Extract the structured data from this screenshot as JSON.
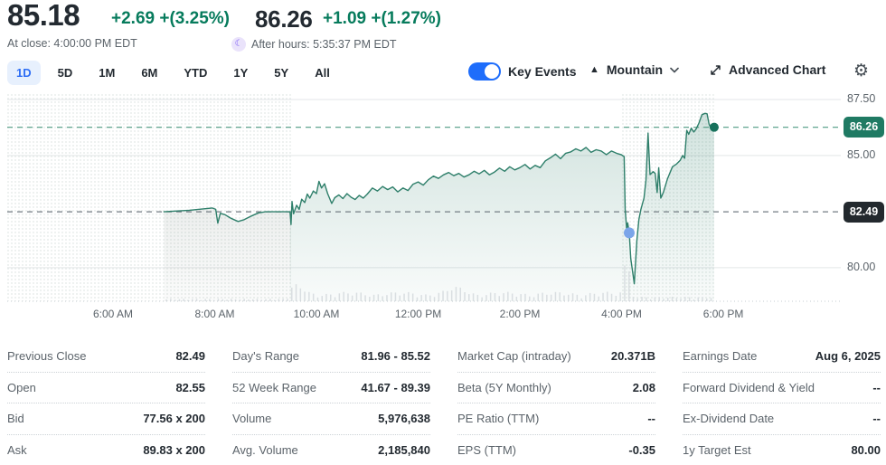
{
  "colors": {
    "positive_green": "#067b5c",
    "chart_line": "#2e7f6a",
    "current_badge": "#1f7a63",
    "prev_close_badge": "#23292e",
    "accent_blue": "#1e6dfb",
    "key_event_dot": "#7ba5e9"
  },
  "header": {
    "price": "85.18",
    "change": "+2.69 +(3.25%)",
    "at_close": "At close: 4:00:00 PM EDT",
    "post_price": "86.26",
    "post_change": "+1.09 +(1.27%)",
    "after_hours_label": "After hours: 5:35:37 PM EDT",
    "moon_icon": "☾"
  },
  "toolbar": {
    "ranges": [
      {
        "label": "1D",
        "active": true
      },
      {
        "label": "5D",
        "active": false
      },
      {
        "label": "1M",
        "active": false
      },
      {
        "label": "6M",
        "active": false
      },
      {
        "label": "YTD",
        "active": false
      },
      {
        "label": "1Y",
        "active": false
      },
      {
        "label": "5Y",
        "active": false
      },
      {
        "label": "All",
        "active": false
      }
    ],
    "key_events_label": "Key Events",
    "key_events_on": true,
    "chart_type_label": "Mountain",
    "mountain_icon": "▲",
    "advanced_chart_label": "Advanced Chart",
    "gear_icon": "⚙"
  },
  "chart_data": {
    "type": "area",
    "title": "1-day intraday price chart",
    "x_axis": {
      "range_hours": [
        3.92,
        20.31
      ],
      "ticks": [
        {
          "label": "6:00 AM",
          "t": 6
        },
        {
          "label": "8:00 AM",
          "t": 8
        },
        {
          "label": "10:00 AM",
          "t": 10
        },
        {
          "label": "12:00 PM",
          "t": 12
        },
        {
          "label": "2:00 PM",
          "t": 14
        },
        {
          "label": "4:00 PM",
          "t": 16
        },
        {
          "label": "6:00 PM",
          "t": 18
        }
      ]
    },
    "y_axis": {
      "range": [
        78.5,
        87.78
      ],
      "ticks": [
        {
          "label": "87.50",
          "v": 87.5
        },
        {
          "label": "85.00",
          "v": 85.0
        },
        {
          "label": "80.00",
          "v": 80.0
        }
      ],
      "current_marker": {
        "label": "86.26",
        "v": 86.26
      },
      "prev_close_marker": {
        "label": "82.49",
        "v": 82.49
      }
    },
    "sessions": {
      "premarket": [
        3.92,
        9.5
      ],
      "market": [
        9.5,
        16.0
      ],
      "after_hours": [
        16.0,
        17.82
      ]
    },
    "markers": {
      "key_event": {
        "t": 16.15,
        "v": 81.55
      },
      "last_trade": {
        "t": 17.82,
        "v": 86.26
      }
    },
    "series": [
      {
        "name": "price",
        "unit": "USD",
        "points": [
          [
            7.0,
            82.49
          ],
          [
            7.5,
            82.56
          ],
          [
            7.95,
            82.66
          ],
          [
            8.02,
            82.6
          ],
          [
            8.06,
            81.98
          ],
          [
            8.11,
            82.42
          ],
          [
            8.2,
            82.36
          ],
          [
            8.32,
            82.2
          ],
          [
            8.46,
            82.06
          ],
          [
            8.58,
            82.14
          ],
          [
            8.72,
            82.3
          ],
          [
            8.86,
            82.44
          ],
          [
            9.0,
            82.49
          ],
          [
            9.48,
            82.49
          ],
          [
            9.5,
            81.92
          ],
          [
            9.52,
            82.95
          ],
          [
            9.55,
            82.4
          ],
          [
            9.61,
            82.78
          ],
          [
            9.66,
            82.6
          ],
          [
            9.71,
            83.05
          ],
          [
            9.77,
            82.9
          ],
          [
            9.82,
            83.28
          ],
          [
            9.87,
            83.1
          ],
          [
            9.94,
            83.42
          ],
          [
            10.0,
            83.3
          ],
          [
            10.05,
            83.85
          ],
          [
            10.1,
            83.55
          ],
          [
            10.16,
            83.74
          ],
          [
            10.22,
            83.3
          ],
          [
            10.3,
            82.86
          ],
          [
            10.36,
            83.12
          ],
          [
            10.44,
            83.24
          ],
          [
            10.52,
            83.08
          ],
          [
            10.6,
            83.3
          ],
          [
            10.68,
            83.14
          ],
          [
            10.76,
            83.04
          ],
          [
            10.84,
            83.22
          ],
          [
            10.92,
            83.1
          ],
          [
            11.0,
            83.28
          ],
          [
            11.1,
            83.55
          ],
          [
            11.2,
            83.42
          ],
          [
            11.3,
            83.62
          ],
          [
            11.4,
            83.48
          ],
          [
            11.5,
            83.6
          ],
          [
            11.6,
            83.38
          ],
          [
            11.7,
            83.55
          ],
          [
            11.8,
            83.44
          ],
          [
            11.9,
            83.72
          ],
          [
            12.0,
            83.82
          ],
          [
            12.1,
            83.68
          ],
          [
            12.2,
            83.92
          ],
          [
            12.3,
            84.08
          ],
          [
            12.4,
            83.98
          ],
          [
            12.5,
            84.14
          ],
          [
            12.6,
            84.24
          ],
          [
            12.7,
            84.1
          ],
          [
            12.8,
            84.2
          ],
          [
            12.9,
            84.04
          ],
          [
            13.0,
            84.14
          ],
          [
            13.1,
            84.3
          ],
          [
            13.2,
            84.18
          ],
          [
            13.3,
            84.34
          ],
          [
            13.4,
            84.14
          ],
          [
            13.5,
            84.26
          ],
          [
            13.6,
            84.44
          ],
          [
            13.7,
            84.3
          ],
          [
            13.8,
            84.5
          ],
          [
            13.9,
            84.36
          ],
          [
            14.0,
            84.46
          ],
          [
            14.1,
            84.6
          ],
          [
            14.2,
            84.4
          ],
          [
            14.3,
            84.56
          ],
          [
            14.4,
            84.46
          ],
          [
            14.5,
            84.76
          ],
          [
            14.6,
            84.9
          ],
          [
            14.7,
            85.06
          ],
          [
            14.8,
            84.86
          ],
          [
            14.9,
            85.1
          ],
          [
            15.0,
            85.16
          ],
          [
            15.1,
            85.3
          ],
          [
            15.2,
            85.2
          ],
          [
            15.3,
            85.36
          ],
          [
            15.4,
            85.14
          ],
          [
            15.5,
            85.26
          ],
          [
            15.6,
            85.2
          ],
          [
            15.7,
            85.04
          ],
          [
            15.8,
            85.2
          ],
          [
            15.9,
            85.1
          ],
          [
            15.99,
            85.04
          ],
          [
            16.05,
            84.95
          ],
          [
            16.07,
            82.6
          ],
          [
            16.1,
            81.7
          ],
          [
            16.12,
            82.0
          ],
          [
            16.15,
            81.55
          ],
          [
            16.18,
            80.4
          ],
          [
            16.25,
            79.28
          ],
          [
            16.3,
            81.2
          ],
          [
            16.34,
            82.15
          ],
          [
            16.38,
            82.6
          ],
          [
            16.44,
            83.1
          ],
          [
            16.48,
            83.9
          ],
          [
            16.52,
            86.0
          ],
          [
            16.56,
            84.15
          ],
          [
            16.62,
            84.28
          ],
          [
            16.66,
            84.2
          ],
          [
            16.7,
            83.35
          ],
          [
            16.73,
            84.45
          ],
          [
            16.77,
            83.1
          ],
          [
            16.82,
            83.35
          ],
          [
            16.9,
            83.95
          ],
          [
            17.0,
            84.5
          ],
          [
            17.08,
            84.62
          ],
          [
            17.15,
            84.78
          ],
          [
            17.2,
            85.0
          ],
          [
            17.24,
            84.88
          ],
          [
            17.28,
            86.12
          ],
          [
            17.32,
            85.95
          ],
          [
            17.37,
            86.22
          ],
          [
            17.42,
            86.05
          ],
          [
            17.47,
            86.2
          ],
          [
            17.52,
            86.45
          ],
          [
            17.58,
            86.82
          ],
          [
            17.64,
            86.88
          ],
          [
            17.68,
            86.86
          ],
          [
            17.72,
            86.4
          ],
          [
            17.75,
            86.26
          ],
          [
            17.82,
            86.26
          ]
        ]
      }
    ]
  },
  "quote_table": {
    "columns": [
      [
        {
          "label": "Previous Close",
          "value": "82.49"
        },
        {
          "label": "Open",
          "value": "82.55"
        },
        {
          "label": "Bid",
          "value": "77.56 x 200"
        },
        {
          "label": "Ask",
          "value": "89.83 x 200"
        }
      ],
      [
        {
          "label": "Day's Range",
          "value": "81.96 - 85.52"
        },
        {
          "label": "52 Week Range",
          "value": "41.67 - 89.39"
        },
        {
          "label": "Volume",
          "value": "5,976,638"
        },
        {
          "label": "Avg. Volume",
          "value": "2,185,840"
        }
      ],
      [
        {
          "label": "Market Cap (intraday)",
          "value": "20.371B"
        },
        {
          "label": "Beta (5Y Monthly)",
          "value": "2.08"
        },
        {
          "label": "PE Ratio (TTM)",
          "value": "--"
        },
        {
          "label": "EPS (TTM)",
          "value": "-0.35"
        }
      ],
      [
        {
          "label": "Earnings Date",
          "value": "Aug 6, 2025"
        },
        {
          "label": "Forward Dividend & Yield",
          "value": "--"
        },
        {
          "label": "Ex-Dividend Date",
          "value": "--"
        },
        {
          "label": "1y Target Est",
          "value": "80.00"
        }
      ]
    ]
  }
}
